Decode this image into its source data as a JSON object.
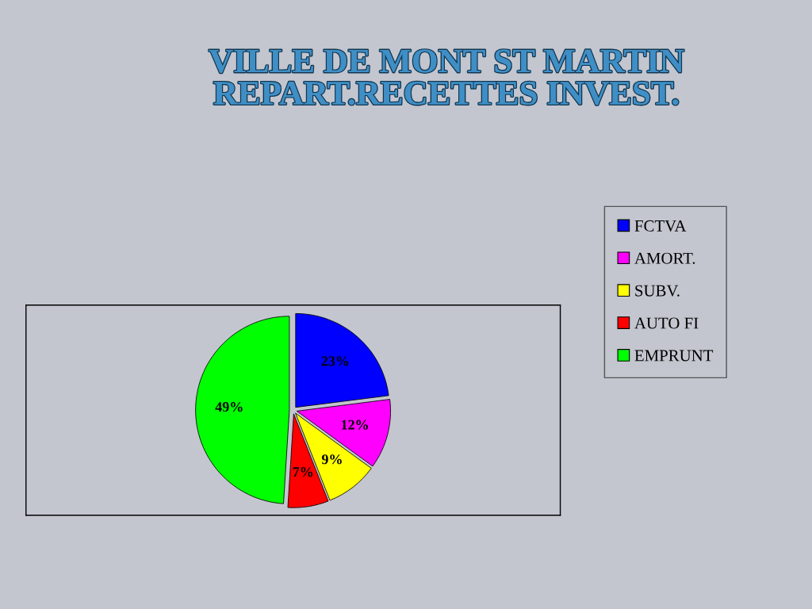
{
  "chart_data": {
    "type": "pie",
    "title": "VILLE DE MONT ST MARTIN\nREPART.RECETTES INVEST.",
    "categories": [
      "FCTVA",
      "AMORT.",
      "SUBV.",
      "AUTO FI",
      "EMPRUNT"
    ],
    "values": [
      23,
      12,
      9,
      7,
      49
    ],
    "value_labels": [
      "23%",
      "12%",
      "9%",
      "7%",
      "49%"
    ],
    "colors": [
      "#0000ff",
      "#ff00ff",
      "#ffff00",
      "#ff0000",
      "#00ff00"
    ],
    "legend": "right"
  }
}
